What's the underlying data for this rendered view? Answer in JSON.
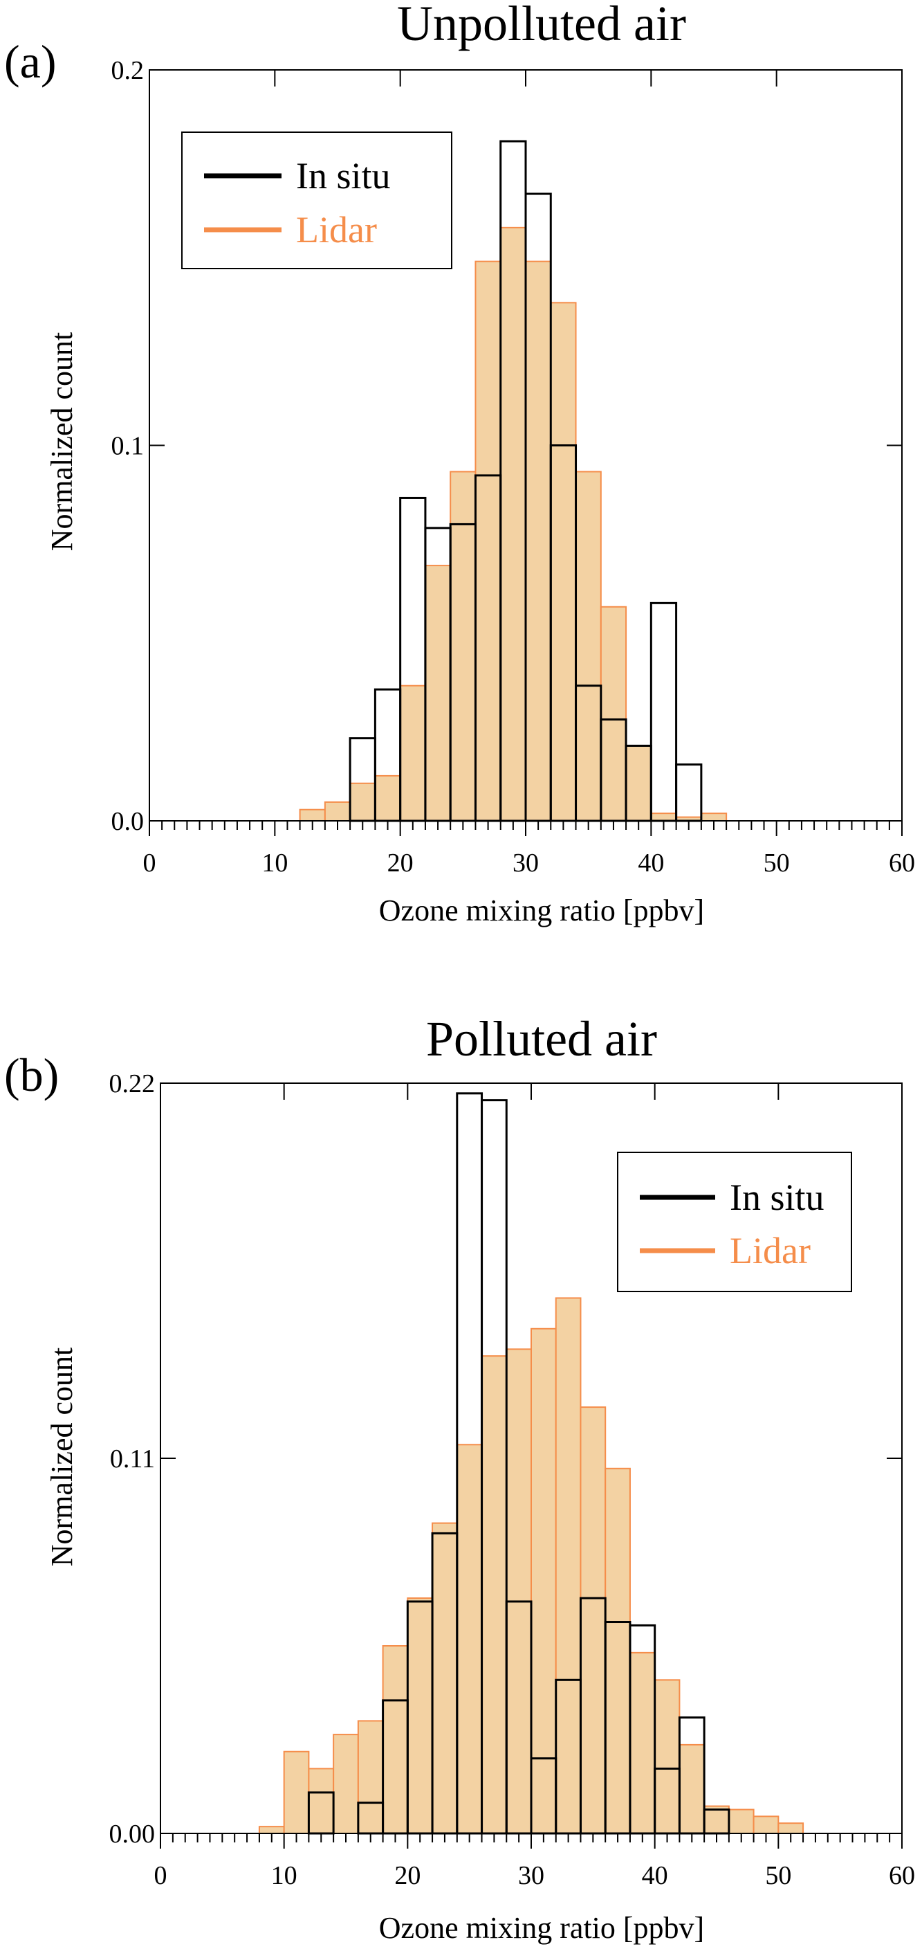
{
  "chart_data": [
    {
      "type": "bar",
      "panel_label": "(a)",
      "title": "Unpolluted air",
      "xlabel": "Ozone mixing ratio [ppbv]",
      "ylabel": "Normalized count",
      "xlim": [
        0,
        60
      ],
      "ylim": [
        0,
        0.2
      ],
      "xticks": [
        "0",
        "10",
        "20",
        "30",
        "40",
        "50",
        "60"
      ],
      "yticks": [
        "0.0",
        "0.1",
        "0.2"
      ],
      "bin_width": 2,
      "legend_position": "top-left",
      "bin_starts": [
        12,
        14,
        16,
        18,
        20,
        22,
        24,
        26,
        28,
        30,
        32,
        34,
        36,
        38,
        40,
        42,
        44
      ],
      "series": [
        {
          "name": "In situ",
          "color": "#000000",
          "values": [
            0,
            0,
            0.022,
            0.035,
            0.086,
            0.078,
            0.079,
            0.092,
            0.181,
            0.167,
            0.1,
            0.036,
            0.027,
            0.02,
            0.058,
            0.015,
            0
          ]
        },
        {
          "name": "Lidar",
          "color": "#f58d4a",
          "fill": "#f3d2a3",
          "values": [
            0.003,
            0.005,
            0.01,
            0.012,
            0.036,
            0.068,
            0.093,
            0.149,
            0.158,
            0.149,
            0.138,
            0.093,
            0.057,
            0.02,
            0.002,
            0.001,
            0.002
          ]
        }
      ]
    },
    {
      "type": "bar",
      "panel_label": "(b)",
      "title": "Polluted air",
      "xlabel": "Ozone mixing ratio [ppbv]",
      "ylabel": "Normalized count",
      "xlim": [
        0,
        60
      ],
      "ylim": [
        0,
        0.22
      ],
      "xticks": [
        "0",
        "10",
        "20",
        "30",
        "40",
        "50",
        "60"
      ],
      "yticks": [
        "0.00",
        "0.11",
        "0.22"
      ],
      "bin_width": 2,
      "legend_position": "top-right",
      "bin_starts": [
        8,
        10,
        12,
        14,
        16,
        18,
        20,
        22,
        24,
        26,
        28,
        30,
        32,
        34,
        36,
        38,
        40,
        42,
        44,
        46,
        48,
        50
      ],
      "series": [
        {
          "name": "In situ",
          "color": "#000000",
          "values": [
            0,
            0,
            0.012,
            0,
            0.009,
            0.039,
            0.068,
            0.088,
            0.217,
            0.215,
            0.068,
            0.022,
            0.045,
            0.069,
            0.062,
            0.061,
            0.019,
            0.034,
            0.007,
            0,
            0,
            0
          ]
        },
        {
          "name": "Lidar",
          "color": "#f58d4a",
          "fill": "#f3d2a3",
          "values": [
            0.002,
            0.024,
            0.019,
            0.029,
            0.033,
            0.055,
            0.069,
            0.091,
            0.114,
            0.14,
            0.142,
            0.148,
            0.157,
            0.125,
            0.107,
            0.053,
            0.045,
            0.026,
            0.008,
            0.007,
            0.005,
            0.003
          ]
        }
      ]
    }
  ]
}
